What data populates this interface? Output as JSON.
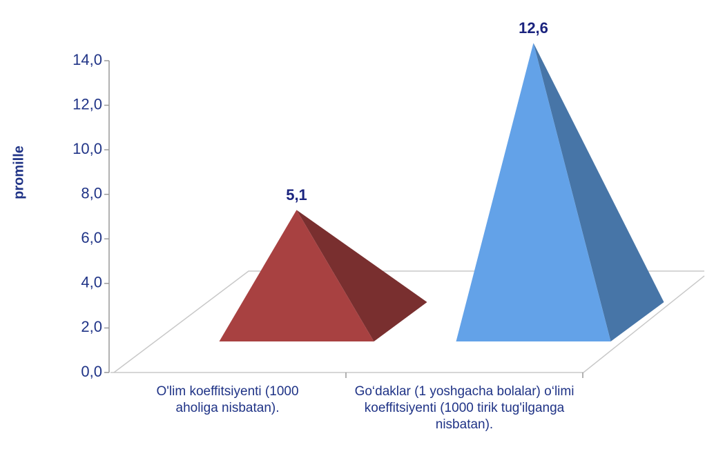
{
  "chart_data": {
    "type": "pyramid3d",
    "y_label": "promille",
    "categories": [
      "O'lim koeffitsiyenti (1000 aholiga nisbatan).",
      "Go‘daklar (1 yoshgacha bolalar) o‘limi koeffitsiyenti (1000 tirik tug'ilganga nisbatan)."
    ],
    "values": [
      5.1,
      12.6
    ],
    "value_labels": [
      "5,1",
      "12,6"
    ],
    "colors": [
      "#a84141",
      "#63a2e8"
    ],
    "ylim": [
      0,
      14
    ],
    "yticks": [
      {
        "value": 0,
        "label": "0,0"
      },
      {
        "value": 2,
        "label": "2,0"
      },
      {
        "value": 4,
        "label": "4,0"
      },
      {
        "value": 6,
        "label": "6,0"
      },
      {
        "value": 8,
        "label": "8,0"
      },
      {
        "value": 10,
        "label": "10,0"
      },
      {
        "value": 12,
        "label": "12,0"
      },
      {
        "value": 14,
        "label": "14,0"
      }
    ]
  }
}
